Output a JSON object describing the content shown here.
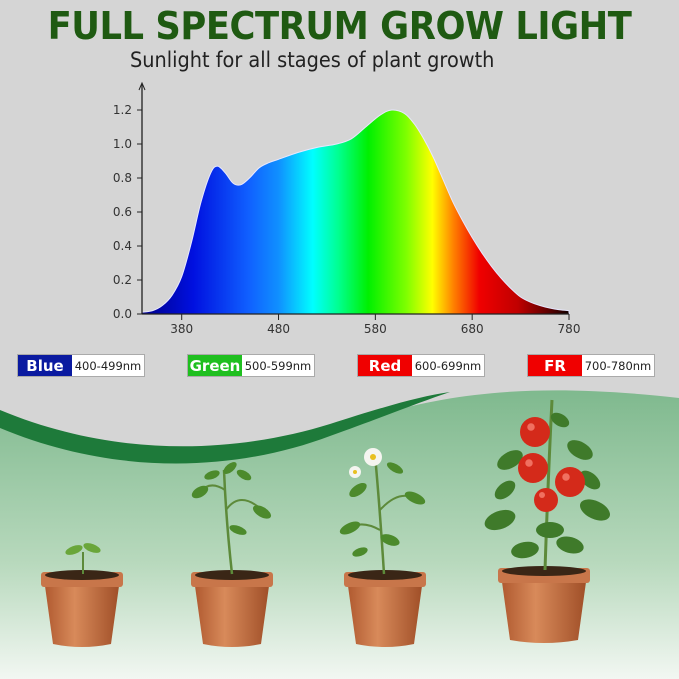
{
  "header": {
    "title": "FULL SPECTRUM GROW LIGHT",
    "subtitle": "Sunlight for all stages of plant growth"
  },
  "chart_data": {
    "type": "area",
    "title": "",
    "xlabel": "",
    "ylabel": "",
    "xlim": [
      339,
      780
    ],
    "ylim": [
      0,
      1.25
    ],
    "x_ticks": [
      380,
      480,
      580,
      680,
      780
    ],
    "y_ticks": [
      "0.0",
      "0.2",
      "0.4",
      "0.6",
      "0.8",
      "1.0",
      "1.2"
    ],
    "grid": false,
    "fill": "visible-spectrum gradient",
    "x": [
      339,
      350,
      360,
      370,
      380,
      390,
      400,
      410,
      417,
      425,
      433,
      441,
      450,
      460,
      470,
      480,
      500,
      520,
      540,
      555,
      570,
      585,
      597,
      610,
      620,
      630,
      640,
      650,
      660,
      670,
      680,
      690,
      700,
      710,
      720,
      730,
      740,
      750,
      760,
      770,
      780
    ],
    "y": [
      0.01,
      0.02,
      0.05,
      0.11,
      0.22,
      0.42,
      0.66,
      0.83,
      0.87,
      0.83,
      0.77,
      0.76,
      0.8,
      0.86,
      0.89,
      0.91,
      0.95,
      0.98,
      1.0,
      1.03,
      1.1,
      1.17,
      1.2,
      1.18,
      1.12,
      1.03,
      0.92,
      0.79,
      0.66,
      0.55,
      0.45,
      0.36,
      0.28,
      0.21,
      0.15,
      0.1,
      0.07,
      0.05,
      0.035,
      0.025,
      0.02
    ]
  },
  "legend": [
    {
      "label": "Blue",
      "range": "400-499nm",
      "color": "#0a1aa0"
    },
    {
      "label": "Green",
      "range": "500-599nm",
      "color": "#1fbf1f"
    },
    {
      "label": "Red",
      "range": "600-699nm",
      "color": "#f00000"
    },
    {
      "label": "FR",
      "range": "700-780nm",
      "color": "#f00000"
    }
  ],
  "colors": {
    "title": "#1f5a12",
    "background": "#d5d5d5",
    "wave": "#1e7a3a"
  },
  "plants": [
    "seedling",
    "young-plant",
    "flowering-plant",
    "fruiting-tomato-plant"
  ]
}
